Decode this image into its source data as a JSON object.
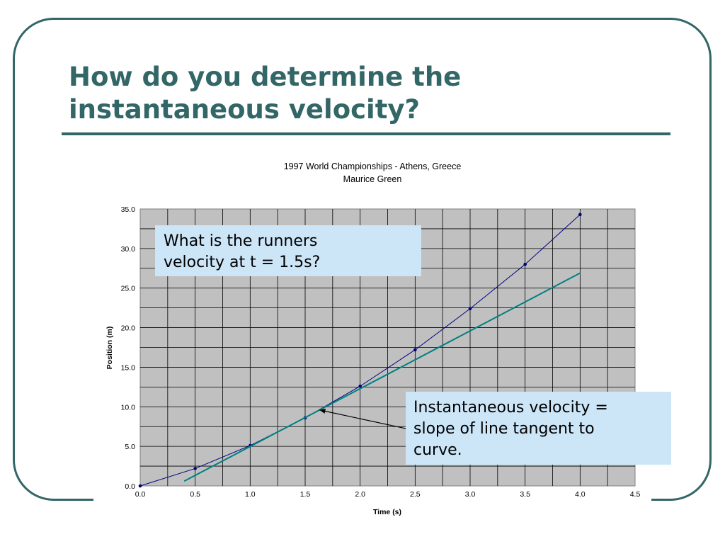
{
  "slide": {
    "title_line1": "How do you determine the",
    "title_line2": "instantaneous velocity?"
  },
  "callouts": {
    "question_line1": "What is the runners",
    "question_line2": "velocity at t = 1.5s?",
    "answer_line1": "Instantaneous velocity =",
    "answer_line2": "slope of line tangent to",
    "answer_line3": "curve."
  },
  "colors": {
    "title": "#336666",
    "plot_area": "#c0c0c0",
    "gridline": "#000000",
    "data_series": "#000080",
    "tangent_line": "#008080",
    "callout_bg": "#cce6f8"
  },
  "chart_data": {
    "type": "line",
    "title": "1997 World Championships - Athens, Greece",
    "subtitle": "Maurice Green",
    "xlabel": "Time (s)",
    "ylabel": "Position (m)",
    "xlim": [
      0,
      4.5
    ],
    "ylim": [
      0,
      35
    ],
    "x_ticks": [
      "0.0",
      "0.5",
      "1.0",
      "1.5",
      "2.0",
      "2.5",
      "3.0",
      "3.5",
      "4.0",
      "4.5"
    ],
    "y_ticks": [
      "0.0",
      "5.0",
      "10.0",
      "15.0",
      "20.0",
      "25.0",
      "30.0",
      "35.0"
    ],
    "grid": true,
    "series": [
      {
        "x": [
          0.0,
          0.5,
          1.0,
          1.5,
          2.0,
          2.5,
          3.0,
          3.5,
          4.0
        ],
        "y": [
          0.0,
          2.2,
          5.1,
          8.6,
          12.6,
          17.2,
          22.4,
          28.0,
          34.3
        ]
      }
    ],
    "tangent": {
      "x": [
        0.4,
        4.0
      ],
      "y": [
        0.6,
        26.9
      ]
    },
    "annotation": {
      "from": [
        2.5,
        7.0
      ],
      "to": [
        1.63,
        9.6
      ]
    }
  }
}
